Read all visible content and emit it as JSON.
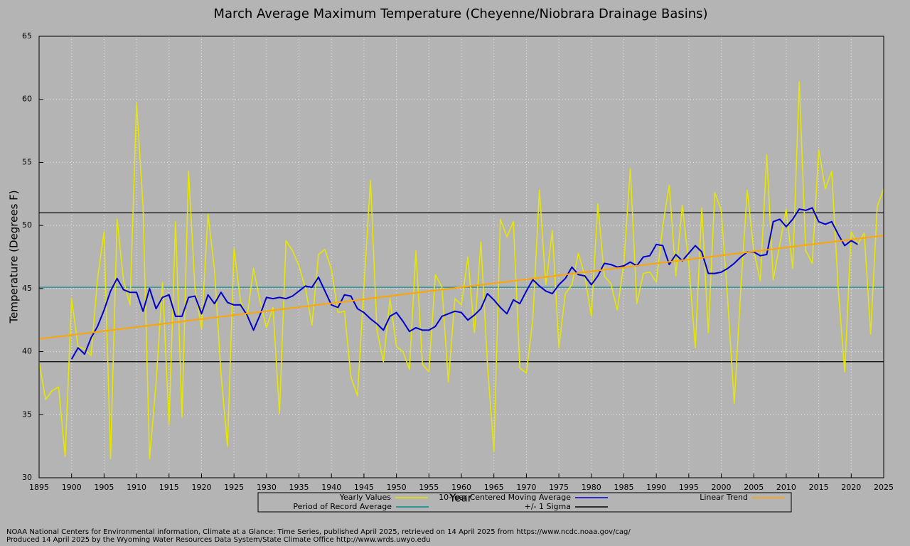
{
  "chart_data": {
    "type": "line",
    "title": "March Average Maximum Temperature (Cheyenne/Niobrara Drainage Basins)",
    "xlabel": "Year",
    "ylabel": "Temperature (Degrees F)",
    "x": [
      1895,
      1896,
      1897,
      1898,
      1899,
      1900,
      1901,
      1902,
      1903,
      1904,
      1905,
      1906,
      1907,
      1908,
      1909,
      1910,
      1911,
      1912,
      1913,
      1914,
      1915,
      1916,
      1917,
      1918,
      1919,
      1920,
      1921,
      1922,
      1923,
      1924,
      1925,
      1926,
      1927,
      1928,
      1929,
      1930,
      1931,
      1932,
      1933,
      1934,
      1935,
      1936,
      1937,
      1938,
      1939,
      1940,
      1941,
      1942,
      1943,
      1944,
      1945,
      1946,
      1947,
      1948,
      1949,
      1950,
      1951,
      1952,
      1953,
      1954,
      1955,
      1956,
      1957,
      1958,
      1959,
      1960,
      1961,
      1962,
      1963,
      1964,
      1965,
      1966,
      1967,
      1968,
      1969,
      1970,
      1971,
      1972,
      1973,
      1974,
      1975,
      1976,
      1977,
      1978,
      1979,
      1980,
      1981,
      1982,
      1983,
      1984,
      1985,
      1986,
      1987,
      1988,
      1989,
      1990,
      1991,
      1992,
      1993,
      1994,
      1995,
      1996,
      1997,
      1998,
      1999,
      2000,
      2001,
      2002,
      2003,
      2004,
      2005,
      2006,
      2007,
      2008,
      2009,
      2010,
      2011,
      2012,
      2013,
      2014,
      2015,
      2016,
      2017,
      2018,
      2019,
      2020,
      2021,
      2022,
      2023,
      2024,
      2025
    ],
    "series": [
      {
        "name": "Yearly Values",
        "color": "#e6e600",
        "values": [
          39.2,
          36.2,
          36.9,
          37.2,
          31.7,
          44.2,
          40.4,
          40.2,
          39.7,
          45.8,
          49.5,
          31.5,
          50.5,
          45.6,
          43.7,
          59.7,
          51.5,
          31.5,
          37.5,
          45.5,
          34.2,
          50.3,
          34.8,
          54.3,
          45.0,
          41.8,
          50.9,
          46.5,
          38.2,
          32.5,
          48.2,
          44.0,
          42.7,
          46.6,
          44.0,
          41.9,
          43.5,
          35.1,
          48.8,
          48.0,
          46.8,
          45.0,
          42.1,
          47.7,
          48.1,
          46.5,
          43.1,
          43.2,
          38.0,
          36.5,
          45.1,
          53.6,
          41.7,
          39.2,
          44.2,
          40.4,
          40.0,
          38.6,
          48.0,
          39.0,
          38.4,
          46.1,
          45.1,
          37.6,
          44.2,
          43.7,
          47.5,
          41.5,
          48.7,
          39.0,
          32.1,
          50.5,
          49.1,
          50.3,
          38.7,
          38.3,
          42.6,
          52.8,
          45.3,
          49.6,
          40.3,
          44.6,
          45.3,
          47.8,
          46.0,
          42.8,
          51.7,
          46.0,
          45.4,
          43.3,
          47.0,
          54.5,
          43.8,
          46.2,
          46.3,
          45.5,
          50.0,
          53.2,
          46.0,
          51.6,
          47.0,
          40.3,
          51.4,
          41.5,
          52.6,
          51.2,
          44.0,
          35.9,
          45.0,
          52.8,
          48.0,
          45.6,
          55.6,
          45.7,
          48.5,
          51.3,
          46.6,
          61.4,
          48.0,
          47.0,
          56.0,
          52.9,
          54.3,
          45.0,
          38.4,
          49.5,
          48.5,
          49.4,
          41.4,
          51.5,
          52.9
        ]
      },
      {
        "name": "10-Year Centered Moving Average",
        "color": "#0000cc",
        "values": [
          null,
          null,
          null,
          null,
          null,
          39.4,
          40.3,
          39.8,
          41.1,
          42.0,
          43.3,
          44.8,
          45.8,
          44.9,
          44.7,
          44.7,
          43.2,
          45.0,
          43.4,
          44.3,
          44.5,
          42.8,
          42.8,
          44.3,
          44.4,
          43.0,
          44.5,
          43.8,
          44.7,
          43.9,
          43.7,
          43.7,
          42.9,
          41.7,
          42.9,
          44.3,
          44.2,
          44.3,
          44.2,
          44.4,
          44.8,
          45.2,
          45.1,
          45.9,
          44.8,
          43.7,
          43.5,
          44.5,
          44.4,
          43.4,
          43.1,
          42.6,
          42.2,
          41.7,
          42.8,
          43.1,
          42.4,
          41.6,
          41.9,
          41.7,
          41.7,
          42.0,
          42.8,
          43.0,
          43.2,
          43.1,
          42.5,
          42.9,
          43.4,
          44.6,
          44.1,
          43.5,
          43.0,
          44.1,
          43.8,
          44.8,
          45.7,
          45.2,
          44.8,
          44.6,
          45.3,
          45.8,
          46.7,
          46.1,
          46.0,
          45.3,
          46.0,
          47.0,
          46.9,
          46.7,
          46.8,
          47.1,
          46.8,
          47.5,
          47.6,
          48.5,
          48.4,
          46.9,
          47.7,
          47.2,
          47.8,
          48.4,
          47.9,
          46.2,
          46.2,
          46.3,
          46.6,
          47.0,
          47.5,
          47.9,
          47.9,
          47.6,
          47.7,
          50.3,
          50.5,
          49.9,
          50.5,
          51.3,
          51.2,
          51.4,
          50.3,
          50.1,
          50.3,
          49.3,
          48.4,
          48.8,
          48.5,
          null,
          null,
          null,
          null
        ]
      }
    ],
    "trend": {
      "name": "Linear Trend",
      "color": "#ffa500",
      "x": [
        1895,
        2025
      ],
      "values": [
        41.0,
        49.2
      ]
    },
    "reference_lines": [
      {
        "name": "Period of Record Average",
        "color": "#008b8b",
        "values": [
          45.1
        ]
      },
      {
        "name": "+/- 1 Sigma",
        "color": "#000000",
        "values": [
          51.0,
          39.2
        ]
      }
    ],
    "xlim": [
      1895,
      2025
    ],
    "xticks": [
      1895,
      1900,
      1905,
      1910,
      1915,
      1920,
      1925,
      1930,
      1935,
      1940,
      1945,
      1950,
      1955,
      1960,
      1965,
      1970,
      1975,
      1980,
      1985,
      1990,
      1995,
      2000,
      2005,
      2010,
      2015,
      2020,
      2025
    ],
    "ylim": [
      30,
      65
    ],
    "yticks": [
      30,
      35,
      40,
      45,
      50,
      55,
      60,
      65
    ],
    "grid": true,
    "legend": "bottom",
    "footnotes": [
      "NOAA National Centers for Environmental information, Climate at a Glance: Time Series, published April 2025, retrieved on 14 April 2025 from https://www.ncdc.noaa.gov/cag/",
      "Produced 14 April 2025 by the Wyoming Water Resources Data System/State Climate Office http://www.wrds.uwyo.edu"
    ]
  }
}
